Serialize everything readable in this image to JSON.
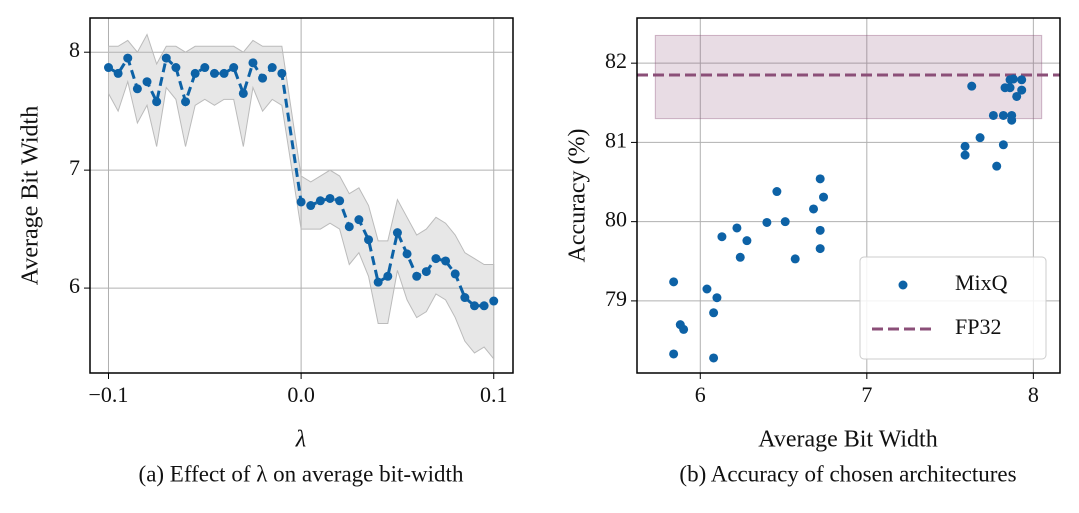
{
  "chart_data": [
    {
      "type": "line",
      "xlabel": "λ",
      "ylabel": "Average Bit Width",
      "caption": "(a) Effect of λ on average bit-width",
      "x": [
        -0.1,
        -0.095,
        -0.09,
        -0.085,
        -0.08,
        -0.075,
        -0.07,
        -0.065,
        -0.06,
        -0.055,
        -0.05,
        -0.045,
        -0.04,
        -0.035,
        -0.03,
        -0.025,
        -0.02,
        -0.015,
        -0.01,
        0.0,
        0.005,
        0.01,
        0.015,
        0.02,
        0.025,
        0.03,
        0.035,
        0.04,
        0.045,
        0.05,
        0.055,
        0.06,
        0.065,
        0.07,
        0.075,
        0.08,
        0.085,
        0.09,
        0.095,
        0.1
      ],
      "series": [
        {
          "color": "#0d62a6",
          "values": [
            7.87,
            7.82,
            7.95,
            7.69,
            7.75,
            7.58,
            7.95,
            7.87,
            7.58,
            7.82,
            7.87,
            7.82,
            7.82,
            7.87,
            7.65,
            7.91,
            7.78,
            7.87,
            7.82,
            6.73,
            6.7,
            6.74,
            6.76,
            6.74,
            6.52,
            6.58,
            6.41,
            6.05,
            6.1,
            6.47,
            6.29,
            6.1,
            6.14,
            6.25,
            6.23,
            6.12,
            5.92,
            5.85,
            5.85,
            5.89
          ],
          "band_upper": [
            8.05,
            8.05,
            8.1,
            8.0,
            8.15,
            7.9,
            8.05,
            8.05,
            8.0,
            8.05,
            8.05,
            8.05,
            8.05,
            8.05,
            8.0,
            8.1,
            8.05,
            8.05,
            8.05,
            6.95,
            6.9,
            6.95,
            7.0,
            6.95,
            6.8,
            6.85,
            6.7,
            6.4,
            6.4,
            6.75,
            6.6,
            6.45,
            6.5,
            6.6,
            6.55,
            6.45,
            6.3,
            6.25,
            6.2,
            6.2
          ],
          "band_lower": [
            7.65,
            7.5,
            7.75,
            7.4,
            7.55,
            7.2,
            7.7,
            7.6,
            7.2,
            7.55,
            7.6,
            7.55,
            7.6,
            7.6,
            7.2,
            7.7,
            7.5,
            7.6,
            7.55,
            6.5,
            6.5,
            6.5,
            6.55,
            6.5,
            6.2,
            6.3,
            6.1,
            5.7,
            5.7,
            6.15,
            5.9,
            5.75,
            5.8,
            5.95,
            5.9,
            5.75,
            5.55,
            5.45,
            5.5,
            5.4
          ],
          "band_color": "#bbbbbb"
        }
      ],
      "xlim": [
        -0.1096,
        0.11
      ],
      "ylim": [
        5.28,
        8.29
      ],
      "xticks": [
        {
          "value": -0.1,
          "label": "−0.1"
        },
        {
          "value": 0.0,
          "label": "0.0"
        },
        {
          "value": 0.1,
          "label": "0.1"
        }
      ],
      "yticks": [
        6,
        7,
        8
      ],
      "grid": true
    },
    {
      "type": "scatter",
      "xlabel": "Average Bit Width",
      "ylabel": "Accuracy (%)",
      "caption": "(b) Accuracy of chosen architectures",
      "series": [
        {
          "name": "MixQ",
          "color": "#0d62a6",
          "x": [
            5.84,
            5.84,
            5.88,
            5.9,
            6.04,
            6.1,
            6.08,
            6.08,
            6.13,
            6.22,
            6.24,
            6.28,
            6.4,
            6.46,
            6.51,
            6.57,
            6.68,
            6.72,
            6.74,
            6.72,
            6.72,
            7.59,
            7.59,
            7.68,
            7.63,
            7.76,
            7.78,
            7.82,
            7.82,
            7.83,
            7.86,
            7.87,
            7.87,
            7.88,
            7.9,
            7.93,
            7.93,
            7.86
          ],
          "values": [
            79.24,
            78.33,
            78.7,
            78.64,
            79.15,
            79.04,
            78.85,
            78.28,
            79.81,
            79.92,
            79.55,
            79.76,
            79.99,
            80.38,
            80.0,
            79.53,
            80.16,
            80.54,
            80.31,
            79.89,
            79.66,
            80.95,
            80.84,
            81.06,
            81.71,
            81.34,
            80.7,
            80.97,
            81.34,
            81.69,
            81.69,
            81.34,
            81.28,
            81.8,
            81.58,
            81.66,
            81.79,
            81.79
          ]
        }
      ],
      "reference": {
        "name": "FP32",
        "value": 81.85,
        "band": [
          81.3,
          82.35
        ],
        "xrange": [
          5.73,
          8.05
        ],
        "color": "#8b4f78"
      },
      "xlim": [
        5.62,
        8.16
      ],
      "ylim": [
        78.09,
        82.57
      ],
      "xticks": [
        6,
        7,
        8
      ],
      "yticks": [
        79,
        80,
        81,
        82
      ],
      "grid": true,
      "legend": "lower right"
    }
  ]
}
